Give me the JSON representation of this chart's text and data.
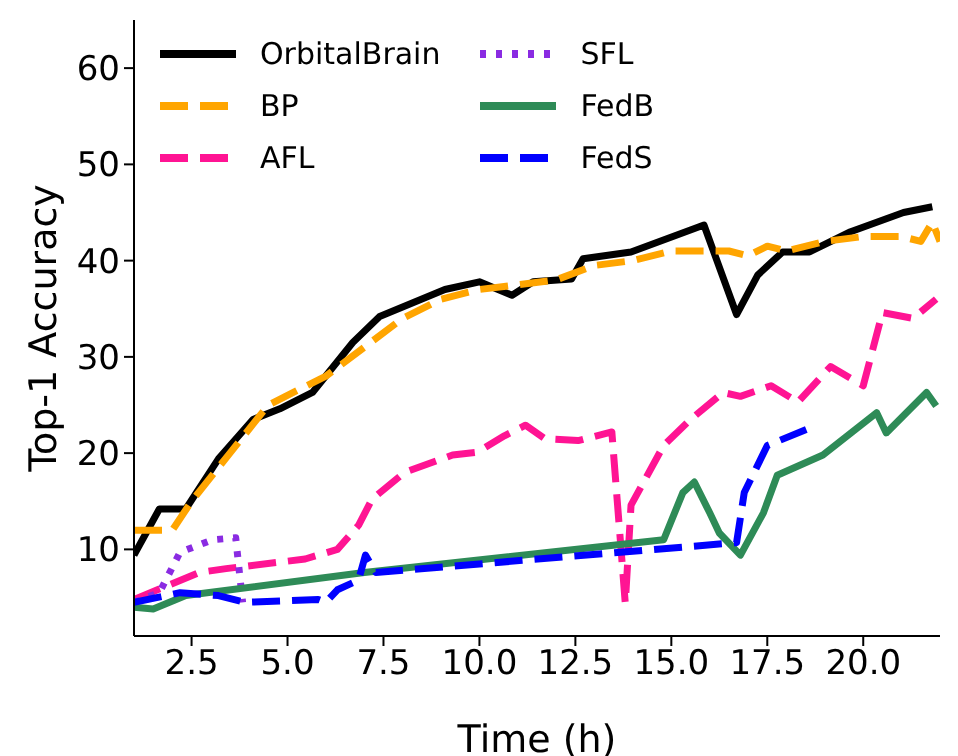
{
  "chart_data": {
    "type": "line",
    "xlabel": "Time (h)",
    "ylabel": "Top-1 Accuracy",
    "xlim": [
      1,
      22
    ],
    "xticks": [
      2.5,
      {
        "value": 5,
        "label": "5.0"
      },
      7.5,
      {
        "value": 10,
        "label": "10.0"
      },
      12.5,
      {
        "value": 15,
        "label": "15.0"
      },
      17.5,
      {
        "value": 20,
        "label": "20.0"
      }
    ],
    "ylim": [
      1,
      65
    ],
    "yticks": [
      10,
      20,
      30,
      40,
      50,
      60
    ],
    "grid": false,
    "legend": "top left",
    "marker": "none",
    "series": [
      {
        "name": "OrbitalBrain",
        "color": "#000000",
        "line_style": "solid",
        "x": [
          1.0,
          1.66,
          2.35,
          3.2,
          4.1,
          4.8,
          5.65,
          6.7,
          7.4,
          9.1,
          10.0,
          10.85,
          11.4,
          12.4,
          12.7,
          13.95,
          15.85,
          16.7,
          17.25,
          17.9,
          18.6,
          19.67,
          21.05,
          21.8
        ],
        "values": [
          9.4,
          14.2,
          14.2,
          19.4,
          23.5,
          24.6,
          26.3,
          31.5,
          34.2,
          37.0,
          37.8,
          36.4,
          37.8,
          38.1,
          40.2,
          40.9,
          43.7,
          34.4,
          38.5,
          40.9,
          40.9,
          43.0,
          45.0,
          45.6
        ]
      },
      {
        "name": "BP",
        "color": "#ffa500",
        "line_style": "dashed",
        "x": [
          1.0,
          2.0,
          2.5,
          3.5,
          4.5,
          6.0,
          7.0,
          8.0,
          9.0,
          10.0,
          11.0,
          12.0,
          13.0,
          14.0,
          15.0,
          15.85,
          16.5,
          17.0,
          17.5,
          18.0,
          19.0,
          20.0,
          21.0,
          21.5,
          21.8,
          22.0
        ],
        "values": [
          12.0,
          12.0,
          15.0,
          20.0,
          25.0,
          28.0,
          31.0,
          34.0,
          36.0,
          37.0,
          37.5,
          38.0,
          39.5,
          40.0,
          41.0,
          41.0,
          41.0,
          40.5,
          41.5,
          41.0,
          42.0,
          42.5,
          42.5,
          42.0,
          44.0,
          42.0
        ]
      },
      {
        "name": "AFL",
        "color": "#ff1493",
        "line_style": "dashed",
        "x": [
          1.0,
          2.7,
          3.4,
          5.46,
          6.3,
          6.85,
          7.2,
          8.05,
          9.3,
          9.95,
          10.65,
          11.2,
          11.7,
          12.57,
          13.45,
          13.8,
          13.95,
          14.8,
          15.5,
          16.35,
          16.8,
          17.6,
          18.3,
          19.15,
          20.0,
          20.5,
          21.3,
          21.9
        ],
        "values": [
          4.8,
          7.6,
          8.0,
          9.0,
          10.0,
          12.5,
          15.2,
          18.0,
          19.8,
          20.1,
          21.8,
          22.9,
          21.5,
          21.3,
          22.2,
          4.4,
          14.6,
          20.8,
          23.5,
          26.3,
          25.9,
          27.0,
          25.3,
          29.0,
          27.0,
          34.6,
          34.0,
          36.0
        ]
      },
      {
        "name": "SFL",
        "color": "#8a2be2",
        "line_style": "dotted",
        "x": [
          1.0,
          1.66,
          2.2,
          3.05,
          3.65,
          3.83
        ],
        "values": [
          4.5,
          5.5,
          9.7,
          11.0,
          11.2,
          4.5
        ]
      },
      {
        "name": "FedB",
        "color": "#2e8b57",
        "line_style": "solid",
        "x": [
          1.0,
          1.5,
          2.35,
          7.0,
          14.8,
          15.3,
          15.6,
          16.0,
          16.25,
          16.8,
          17.4,
          17.76,
          18.95,
          20.35,
          20.6,
          21.65,
          21.9
        ],
        "values": [
          4.0,
          3.8,
          5.2,
          7.6,
          11.0,
          15.9,
          17.0,
          13.8,
          11.7,
          9.4,
          13.8,
          17.7,
          19.8,
          24.2,
          22.1,
          26.3,
          24.9
        ]
      },
      {
        "name": "FedS",
        "color": "#0000ff",
        "line_style": "dashed",
        "x": [
          1.0,
          2.2,
          3.2,
          3.9,
          5.8,
          6.0,
          6.3,
          6.85,
          7.03,
          7.3,
          16.7,
          16.9,
          17.5,
          18.55
        ],
        "values": [
          4.5,
          5.5,
          5.2,
          4.5,
          4.8,
          4.5,
          5.8,
          6.8,
          9.4,
          7.6,
          10.7,
          15.9,
          20.8,
          22.5
        ]
      }
    ]
  }
}
